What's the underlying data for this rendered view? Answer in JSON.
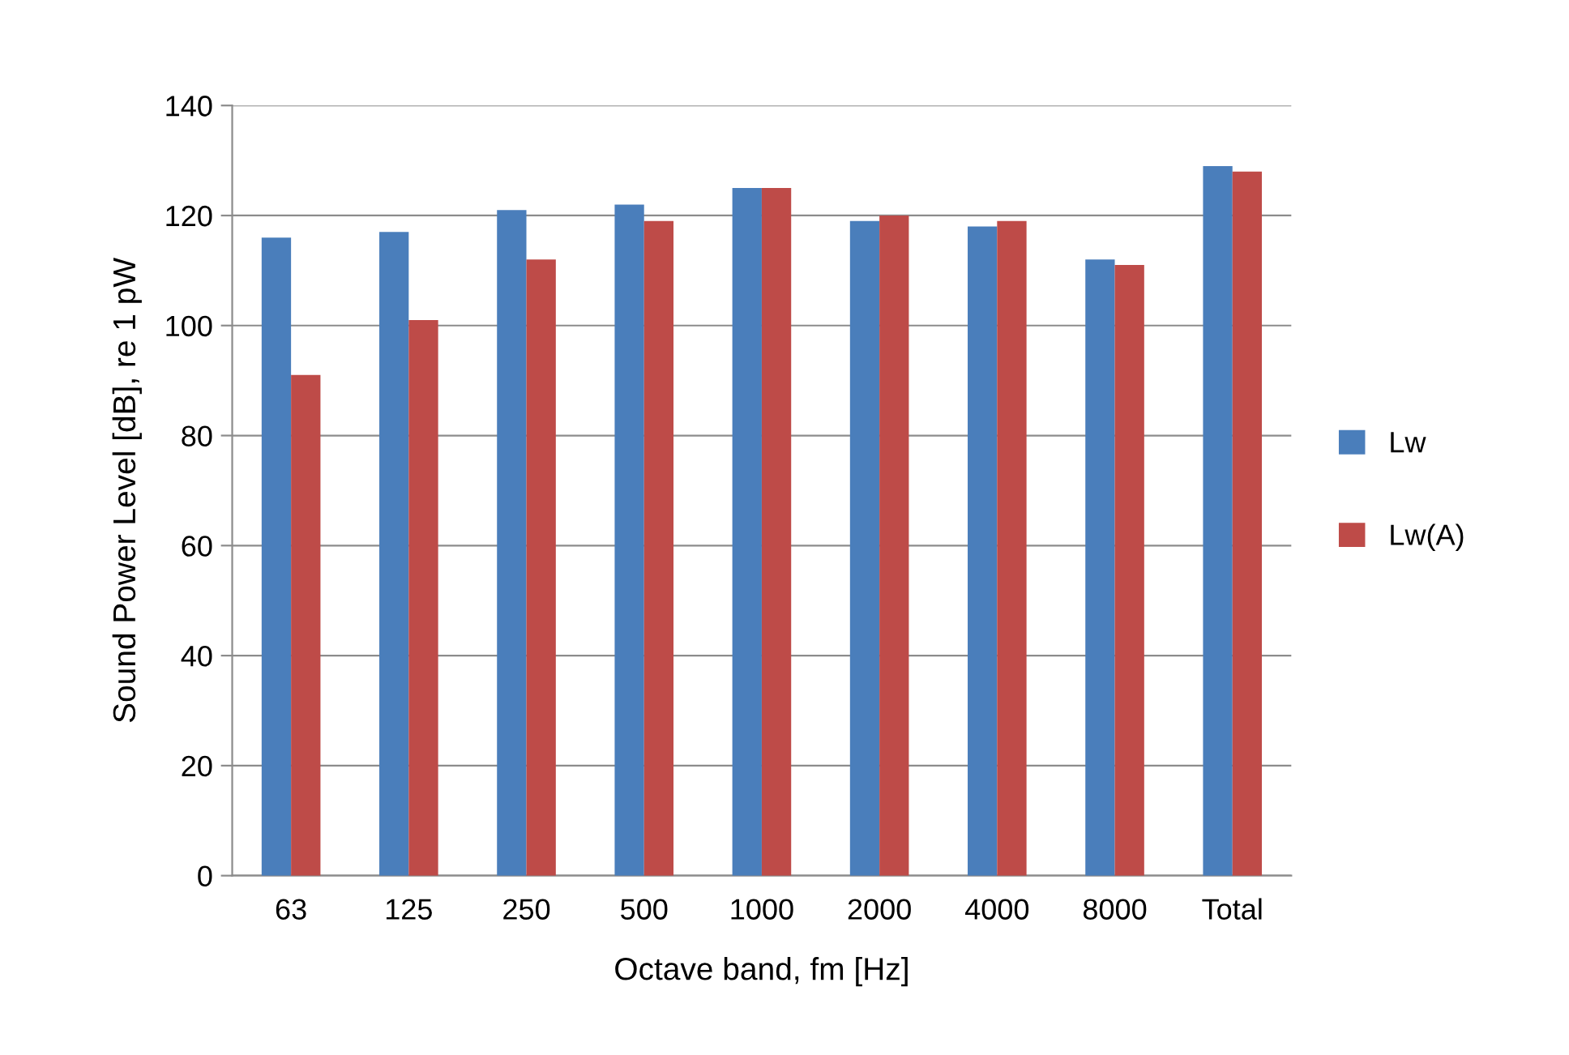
{
  "chart_data": {
    "type": "bar",
    "xlabel": "Octave band, fm [Hz]",
    "ylabel": "Sound Power Level [dB], re 1 pW",
    "categories": [
      "63",
      "125",
      "250",
      "500",
      "1000",
      "2000",
      "4000",
      "8000",
      "Total"
    ],
    "series": [
      {
        "name": "Lw",
        "color": "#4a7ebb",
        "values": [
          116,
          117,
          121,
          122,
          125,
          119,
          118,
          112,
          129
        ]
      },
      {
        "name": "Lw(A)",
        "color": "#be4b48",
        "values": [
          91,
          101,
          112,
          119,
          125,
          120,
          119,
          111,
          128
        ]
      }
    ],
    "ylim": [
      0,
      140
    ],
    "yticks": [
      0,
      20,
      40,
      60,
      80,
      100,
      120,
      140
    ],
    "grid": "y",
    "legend": "right"
  }
}
